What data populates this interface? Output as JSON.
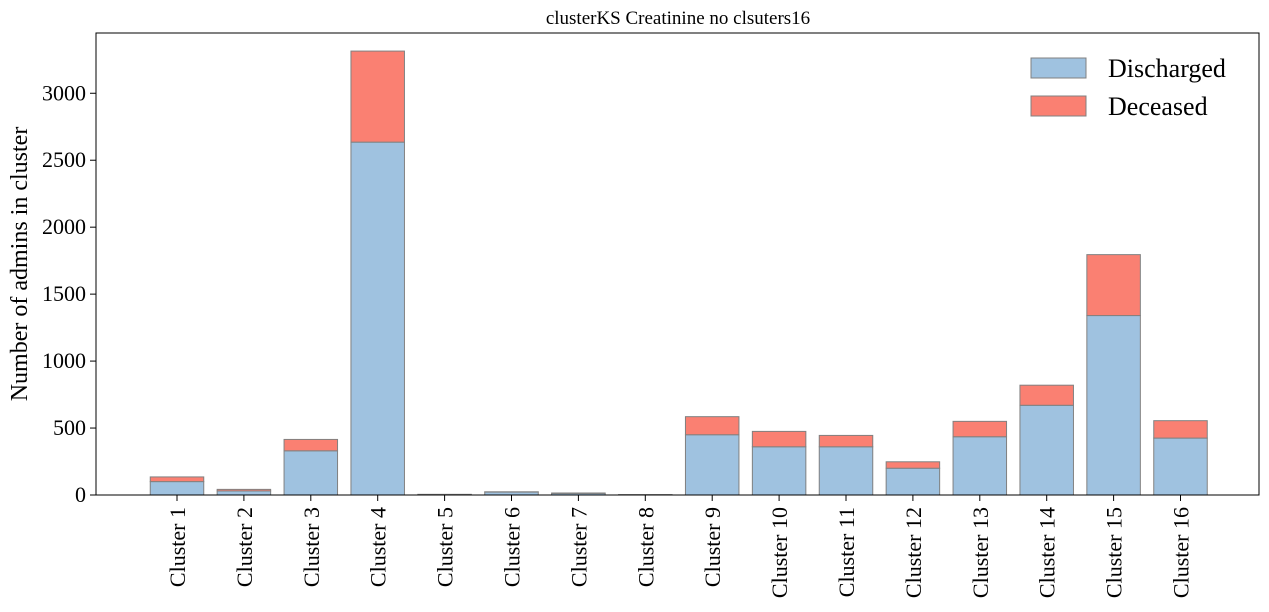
{
  "chart_data": {
    "type": "bar",
    "stacked": true,
    "title": "clusterKS Creatinine no clsuters16",
    "xlabel": "",
    "ylabel": "Number of admins in cluster",
    "ylim": [
      0,
      3450
    ],
    "yticks": [
      0,
      500,
      1000,
      1500,
      2000,
      2500,
      3000
    ],
    "ytick_labels": [
      "0",
      "500",
      "1000",
      "1500",
      "2000",
      "2500",
      "3000"
    ],
    "categories": [
      "Cluster 1",
      "Cluster 2",
      "Cluster 3",
      "Cluster 4",
      "Cluster 5",
      "Cluster 6",
      "Cluster 7",
      "Cluster 8",
      "Cluster 9",
      "Cluster 10",
      "Cluster 11",
      "Cluster 12",
      "Cluster 13",
      "Cluster 14",
      "Cluster 15",
      "Cluster 16"
    ],
    "series": [
      {
        "name": "Discharged",
        "color": "#9fc2e0",
        "values": [
          100,
          30,
          330,
          2635,
          5,
          22,
          12,
          3,
          450,
          360,
          360,
          200,
          435,
          670,
          1340,
          425
        ]
      },
      {
        "name": "Deceased",
        "color": "#fa8072",
        "values": [
          35,
          12,
          85,
          680,
          0,
          2,
          3,
          0,
          135,
          115,
          85,
          48,
          115,
          150,
          455,
          130
        ]
      }
    ],
    "legend": "top-right",
    "grid": false,
    "bar_edge_color": "#808080"
  }
}
